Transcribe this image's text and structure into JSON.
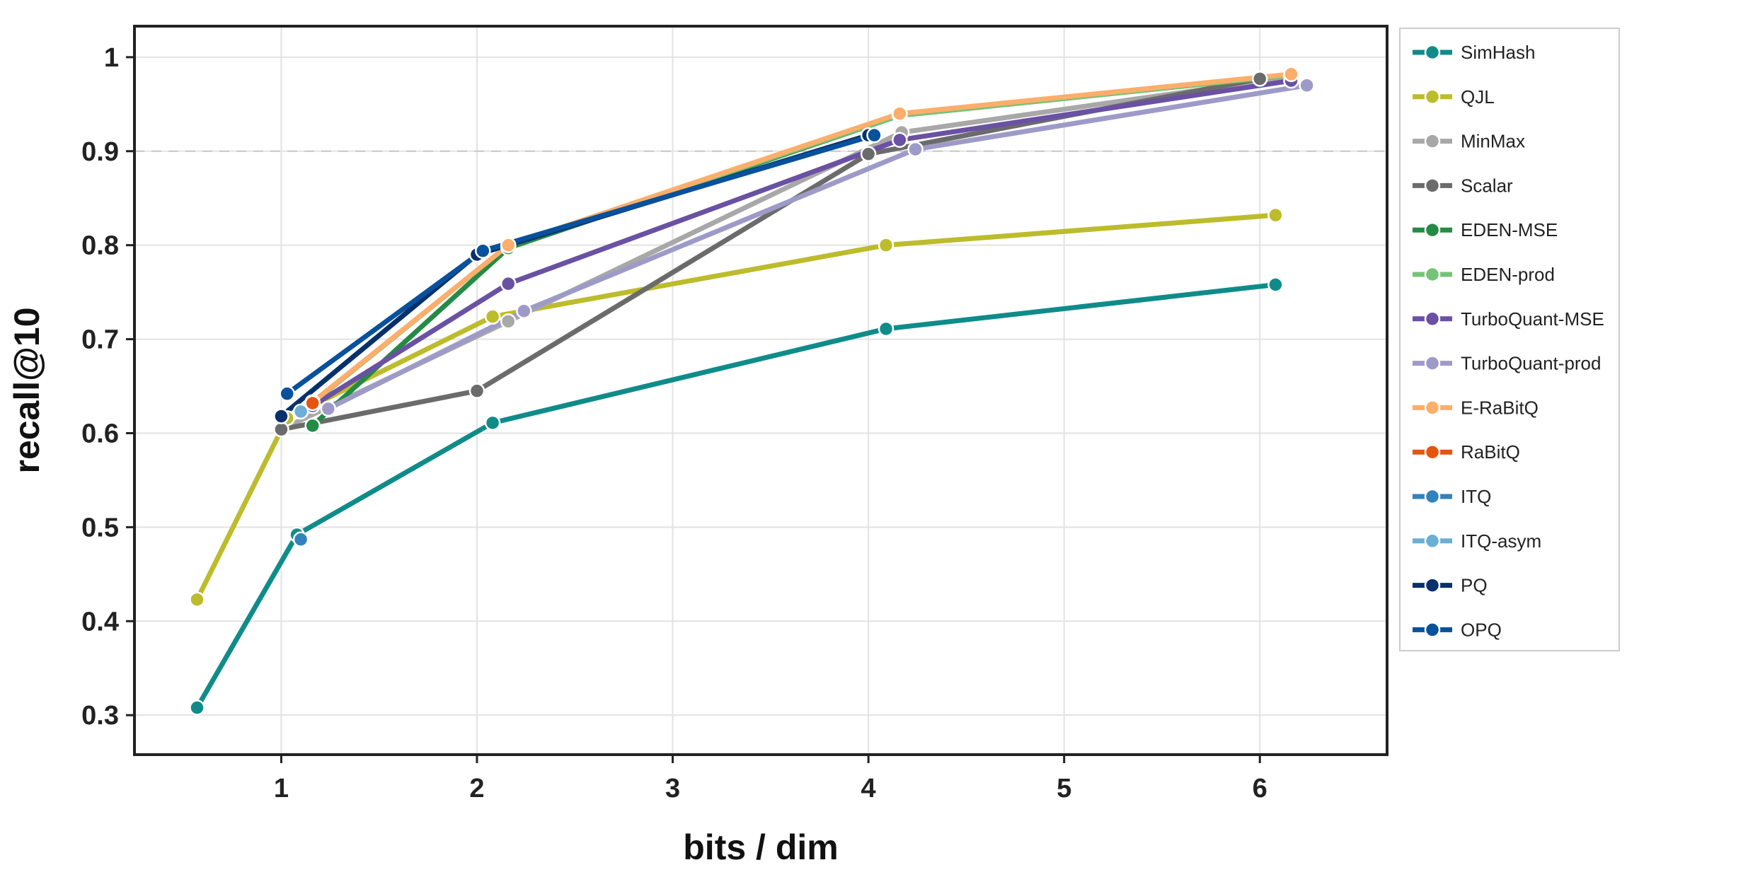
{
  "chart_data": {
    "type": "line",
    "title": "",
    "xlabel": "bits / dim",
    "ylabel": "recall@10",
    "xlim": [
      0.25,
      6.65
    ],
    "ylim": [
      0.258,
      1.033
    ],
    "xticks": [
      1,
      2,
      3,
      4,
      5,
      6
    ],
    "yticks": [
      0.3,
      0.4,
      0.5,
      0.6,
      0.7,
      0.8,
      0.9,
      1
    ],
    "ytick_labels": [
      "0.3",
      "0.4",
      "0.5",
      "0.6",
      "0.7",
      "0.8",
      "0.9",
      "1"
    ],
    "grid": true,
    "reference_line": {
      "y": 0.9,
      "style": "dashed",
      "color": "#c8c8c8"
    },
    "legend_position": "outside-right",
    "series": [
      {
        "name": "SimHash",
        "color": "#0f8c8a",
        "x": [
          0.57,
          1.08,
          2.08,
          4.09,
          6.08
        ],
        "y": [
          0.308,
          0.492,
          0.611,
          0.711,
          0.758
        ]
      },
      {
        "name": "QJL",
        "color": "#bcbc2c",
        "x": [
          0.57,
          1.03,
          2.08,
          4.09,
          6.08
        ],
        "y": [
          0.423,
          0.616,
          0.724,
          0.8,
          0.832
        ]
      },
      {
        "name": "MinMax",
        "color": "#a8a8a8",
        "x": [
          1.0,
          2.16,
          4.17,
          6.16
        ],
        "y": [
          0.604,
          0.719,
          0.92,
          0.979
        ]
      },
      {
        "name": "Scalar",
        "color": "#6b6b6b",
        "x": [
          1.0,
          2.0,
          4.0,
          6.0
        ],
        "y": [
          0.604,
          0.645,
          0.897,
          0.977
        ]
      },
      {
        "name": "EDEN-MSE",
        "color": "#238b45",
        "x": [
          1.16,
          2.16,
          4.16,
          6.16
        ],
        "y": [
          0.608,
          0.797,
          0.938,
          0.981
        ]
      },
      {
        "name": "EDEN-prod",
        "color": "#74c476",
        "x": [
          1.16,
          2.16,
          4.16,
          6.16
        ],
        "y": [
          0.632,
          0.8,
          0.938,
          0.981
        ]
      },
      {
        "name": "TurboQuant-MSE",
        "color": "#6a51a3",
        "x": [
          1.16,
          2.16,
          4.16,
          6.16
        ],
        "y": [
          0.629,
          0.759,
          0.912,
          0.975
        ]
      },
      {
        "name": "TurboQuant-prod",
        "color": "#9e9ac8",
        "x": [
          1.24,
          2.24,
          4.24,
          6.24
        ],
        "y": [
          0.626,
          0.73,
          0.902,
          0.97
        ]
      },
      {
        "name": "E-RaBitQ",
        "color": "#fdae6b",
        "x": [
          1.16,
          2.16,
          4.16,
          6.16
        ],
        "y": [
          0.633,
          0.8,
          0.94,
          0.982
        ]
      },
      {
        "name": "RaBitQ",
        "color": "#e6550d",
        "x": [
          1.16
        ],
        "y": [
          0.632
        ]
      },
      {
        "name": "ITQ",
        "color": "#3182bd",
        "x": [
          1.1
        ],
        "y": [
          0.487
        ]
      },
      {
        "name": "ITQ-asym",
        "color": "#6baed6",
        "x": [
          1.1
        ],
        "y": [
          0.623
        ]
      },
      {
        "name": "PQ",
        "color": "#08306b",
        "x": [
          1.0,
          2.0,
          4.0
        ],
        "y": [
          0.618,
          0.79,
          0.917
        ]
      },
      {
        "name": "OPQ",
        "color": "#08519c",
        "x": [
          1.03,
          2.03,
          4.03
        ],
        "y": [
          0.642,
          0.794,
          0.917
        ]
      }
    ]
  }
}
